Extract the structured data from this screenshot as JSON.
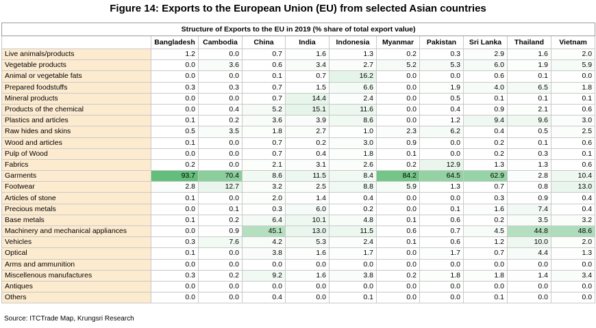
{
  "title": "Figure 14: Exports to the European Union (EU) from selected Asian countries",
  "table_title": "Structure of Exports to the EU in 2019 (% share of total export value)",
  "columns": [
    "Bangladesh",
    "Cambodia",
    "China",
    "India",
    "Indonesia",
    "Myanmar",
    "Pakistan",
    "Sri Lanka",
    "Thailand",
    "Vietnam"
  ],
  "highlight_color": "#63be7b",
  "rows": [
    {
      "label": "Live animals/products",
      "values": [
        "1.2",
        "0.0",
        "0.7",
        "1.6",
        "1.3",
        "0.2",
        "0.3",
        "2.9",
        "1.6",
        "2.0"
      ]
    },
    {
      "label": "Vegetable products",
      "values": [
        "0.0",
        "3.6",
        "0.6",
        "3.4",
        "2.7",
        "5.2",
        "5.3",
        "6.0",
        "1.9",
        "5.9"
      ]
    },
    {
      "label": "Animal or vegetable fats",
      "values": [
        "0.0",
        "0.0",
        "0.1",
        "0.7",
        "16.2",
        "0.0",
        "0.0",
        "0.6",
        "0.1",
        "0.0"
      ]
    },
    {
      "label": "Prepared foodstuffs",
      "values": [
        "0.3",
        "0.3",
        "0.7",
        "1.5",
        "6.6",
        "0.0",
        "1.9",
        "4.0",
        "6.5",
        "1.8"
      ]
    },
    {
      "label": "Mineral products",
      "values": [
        "0.0",
        "0.0",
        "0.7",
        "14.4",
        "2.4",
        "0.0",
        "0.5",
        "0.1",
        "0.1",
        "0.1"
      ]
    },
    {
      "label": "Products of the chemical",
      "values": [
        "0.0",
        "0.4",
        "5.2",
        "15.1",
        "11.6",
        "0.0",
        "0.4",
        "0.9",
        "2.1",
        "0.6"
      ]
    },
    {
      "label": "Plastics and articles",
      "values": [
        "0.1",
        "0.2",
        "3.6",
        "3.9",
        "8.6",
        "0.0",
        "1.2",
        "9.4",
        "9.6",
        "3.0"
      ]
    },
    {
      "label": "Raw hides and skins",
      "values": [
        "0.5",
        "3.5",
        "1.8",
        "2.7",
        "1.0",
        "2.3",
        "6.2",
        "0.4",
        "0.5",
        "2.5"
      ]
    },
    {
      "label": "Wood and articles",
      "values": [
        "0.1",
        "0.0",
        "0.7",
        "0.2",
        "3.0",
        "0.9",
        "0.0",
        "0.2",
        "0.1",
        "0.6"
      ]
    },
    {
      "label": "Pulp of Wood",
      "values": [
        "0.0",
        "0.0",
        "0.7",
        "0.4",
        "1.8",
        "0.1",
        "0.0",
        "0.2",
        "0.3",
        "0.1"
      ]
    },
    {
      "label": "Fabrics",
      "values": [
        "0.2",
        "0.0",
        "2.1",
        "3.1",
        "2.6",
        "0.2",
        "12.9",
        "1.3",
        "1.3",
        "0.6"
      ]
    },
    {
      "label": "Garments",
      "values": [
        "93.7",
        "70.4",
        "8.6",
        "11.5",
        "8.4",
        "84.2",
        "64.5",
        "62.9",
        "2.8",
        "10.4"
      ]
    },
    {
      "label": "Footwear",
      "values": [
        "2.8",
        "12.7",
        "3.2",
        "2.5",
        "8.8",
        "5.9",
        "1.3",
        "0.7",
        "0.8",
        "13.0"
      ]
    },
    {
      "label": "Articles of stone",
      "values": [
        "0.1",
        "0.0",
        "2.0",
        "1.4",
        "0.4",
        "0.0",
        "0.0",
        "0.3",
        "0.9",
        "0.4"
      ]
    },
    {
      "label": "Precious metals",
      "values": [
        "0.0",
        "0.1",
        "0.3",
        "6.0",
        "0.2",
        "0.0",
        "0.1",
        "1.6",
        "7.4",
        "0.4"
      ]
    },
    {
      "label": "Base metals",
      "values": [
        "0.1",
        "0.2",
        "6.4",
        "10.1",
        "4.8",
        "0.1",
        "0.6",
        "0.2",
        "3.5",
        "3.2"
      ]
    },
    {
      "label": "Machinery and mechanical appliances",
      "values": [
        "0.0",
        "0.9",
        "45.1",
        "13.0",
        "11.5",
        "0.6",
        "0.7",
        "4.5",
        "44.8",
        "48.6"
      ]
    },
    {
      "label": "Vehicles",
      "values": [
        "0.3",
        "7.6",
        "4.2",
        "5.3",
        "2.4",
        "0.1",
        "0.6",
        "1.2",
        "10.0",
        "2.0"
      ]
    },
    {
      "label": "Optical",
      "values": [
        "0.1",
        "0.0",
        "3.8",
        "1.6",
        "1.7",
        "0.0",
        "1.7",
        "0.7",
        "4.4",
        "1.3"
      ]
    },
    {
      "label": "Arms and ammunition",
      "values": [
        "0.0",
        "0.0",
        "0.0",
        "0.0",
        "0.0",
        "0.0",
        "0.0",
        "0.0",
        "0.0",
        "0.0"
      ]
    },
    {
      "label": "Miscellenous manufactures",
      "values": [
        "0.3",
        "0.2",
        "9.2",
        "1.6",
        "3.8",
        "0.2",
        "1.8",
        "1.8",
        "1.4",
        "3.4"
      ]
    },
    {
      "label": "Antiques",
      "values": [
        "0.0",
        "0.0",
        "0.0",
        "0.0",
        "0.0",
        "0.0",
        "0.0",
        "0.0",
        "0.0",
        "0.0"
      ]
    },
    {
      "label": "Others",
      "values": [
        "0.0",
        "0.0",
        "0.4",
        "0.0",
        "0.1",
        "0.0",
        "0.0",
        "0.1",
        "0.0",
        "0.0"
      ]
    }
  ],
  "source": "Source: ITCTrade Map, Krungsri Research"
}
